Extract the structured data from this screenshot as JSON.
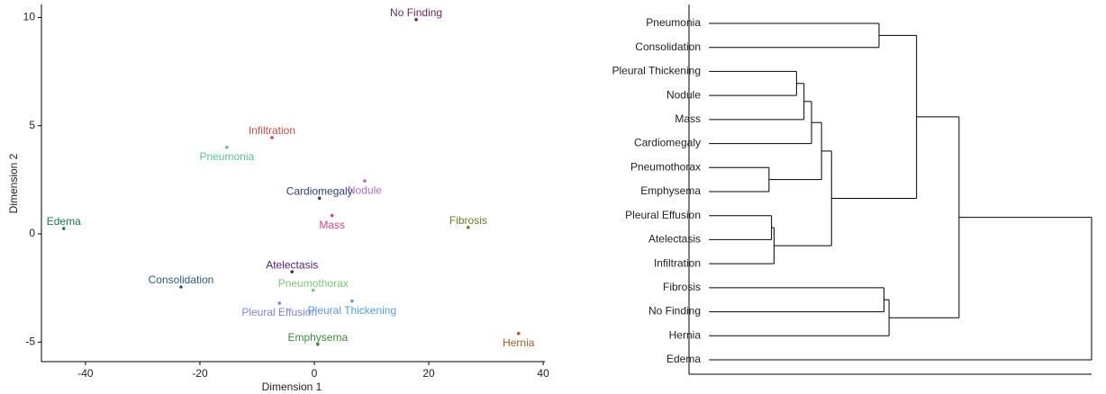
{
  "chart_data": [
    {
      "type": "scatter",
      "xlabel": "Dimension 1",
      "ylabel": "Dimension 2",
      "labels": [
        "No Finding",
        "Infiltration",
        "Pneumonia",
        "Nodule",
        "Cardiomegaly",
        "Mass",
        "Edema",
        "Fibrosis",
        "Atelectasis",
        "Consolidation",
        "Pneumothorax",
        "Pleural Effusion",
        "Pleural Thickening",
        "Emphysema",
        "Hernia"
      ],
      "x": [
        17.8,
        -7.4,
        -15.3,
        8.8,
        0.9,
        3.1,
        -43.8,
        26.9,
        -3.9,
        -23.3,
        -0.2,
        -6.1,
        6.6,
        0.6,
        35.7
      ],
      "y": [
        9.9,
        4.45,
        4.0,
        2.45,
        1.65,
        0.85,
        0.25,
        0.3,
        -1.75,
        -2.45,
        -2.6,
        -3.2,
        -3.1,
        -5.1,
        -4.6
      ],
      "colors": [
        "#6a2a5e",
        "#c0504d",
        "#5fbfa0",
        "#b36ac9",
        "#2c3e73",
        "#d6457f",
        "#1e7a4e",
        "#6b7a2a",
        "#4a1f6e",
        "#2b5c7a",
        "#7cc87a",
        "#7b86d6",
        "#5b9bd5",
        "#3e8b3e",
        "#a0602a"
      ],
      "xlim": [
        -47.7,
        40.3
      ],
      "ylim": [
        -5.9,
        10.6
      ],
      "xticks": [
        -40,
        -20,
        0,
        20,
        40
      ],
      "yticks": [
        -5,
        0,
        5,
        10
      ]
    },
    {
      "type": "dendrogram",
      "xlim": [
        -0.08,
        1.53
      ],
      "tree": {
        "height": 1.53,
        "children": [
          {
            "height": 1.0,
            "children": [
              {
                "height": 0.83,
                "children": [
                  {
                    "height": 0.68,
                    "children": [
                      {
                        "label": "Pneumonia"
                      },
                      {
                        "label": "Consolidation"
                      }
                    ]
                  },
                  {
                    "height": 0.49,
                    "children": [
                      {
                        "height": 0.45,
                        "children": [
                          {
                            "height": 0.41,
                            "children": [
                              {
                                "height": 0.38,
                                "children": [
                                  {
                                    "height": 0.35,
                                    "children": [
                                      {
                                        "label": "Pleural Thickening"
                                      },
                                      {
                                        "label": "Nodule"
                                      }
                                    ]
                                  },
                                  {
                                    "label": "Mass"
                                  }
                                ]
                              },
                              {
                                "label": "Cardiomegaly"
                              }
                            ]
                          },
                          {
                            "height": 0.24,
                            "children": [
                              {
                                "label": "Pneumothorax"
                              },
                              {
                                "label": "Emphysema"
                              }
                            ]
                          }
                        ]
                      },
                      {
                        "height": 0.26,
                        "children": [
                          {
                            "height": 0.25,
                            "children": [
                              {
                                "label": "Pleural Effusion"
                              },
                              {
                                "label": "Atelectasis"
                              }
                            ]
                          },
                          {
                            "label": "Infiltration"
                          }
                        ]
                      }
                    ]
                  }
                ]
              },
              {
                "height": 0.72,
                "children": [
                  {
                    "height": 0.7,
                    "children": [
                      {
                        "label": "Fibrosis"
                      },
                      {
                        "label": "No Finding"
                      }
                    ]
                  },
                  {
                    "label": "Hernia"
                  }
                ]
              }
            ]
          },
          {
            "label": "Edema"
          }
        ]
      }
    }
  ]
}
